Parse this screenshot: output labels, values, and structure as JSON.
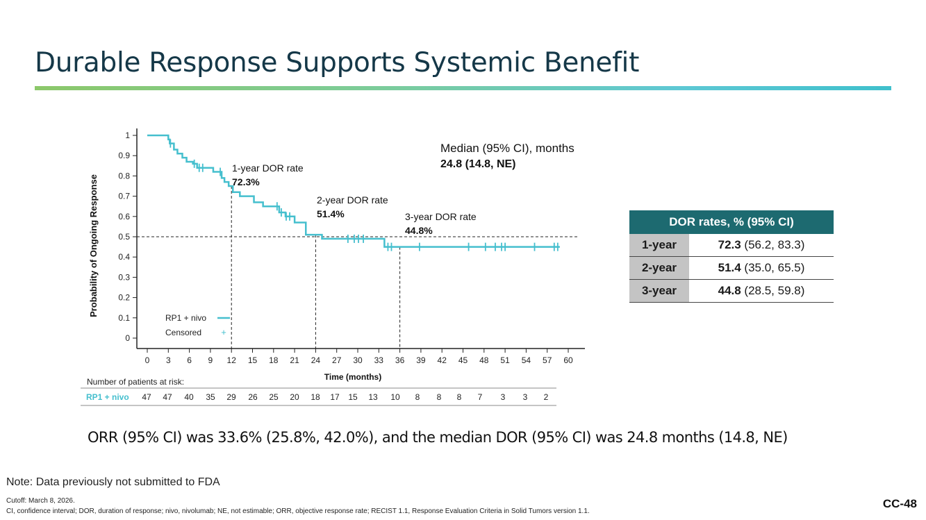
{
  "slide": {
    "title": "Durable Response Supports Systemic Benefit",
    "summary": "ORR (95% CI) was 33.6% (25.8%, 42.0%), and the median DOR (95% CI) was 24.8 months (14.8, NE)",
    "note": "Note: Data previously not submitted to FDA",
    "footnote_cutoff": "Cutoff: March 8, 2026.",
    "footnote_abbrev": "CI, confidence interval; DOR, duration of response; nivo, nivolumab; NE, not estimable; ORR, objective response rate; RECIST 1.1, Response Evaluation Criteria in Solid Tumors version 1.1.",
    "slide_number": "CC-48"
  },
  "colors": {
    "curve": "#45bfce",
    "table_header": "#1d6a70",
    "table_row_label": "#c4c4c4",
    "title_text": "#153848"
  },
  "chart_data": {
    "type": "line",
    "xlabel": "Time (months)",
    "ylabel": "Probability of Ongoing Response",
    "xlim": [
      0,
      60
    ],
    "ylim": [
      0,
      1
    ],
    "x_ticks": [
      0,
      3,
      6,
      9,
      12,
      15,
      18,
      21,
      24,
      27,
      30,
      33,
      36,
      39,
      42,
      45,
      48,
      51,
      54,
      57,
      60
    ],
    "y_ticks": [
      "0",
      "0.1",
      "0.2",
      "0.3",
      "0.4",
      "0.5",
      "0.6",
      "0.7",
      "0.8",
      "0.9",
      "1"
    ],
    "legend": [
      {
        "label": "RP1 + nivo",
        "symbol": "line"
      },
      {
        "label": "Censored",
        "symbol": "+"
      }
    ],
    "series": [
      {
        "name": "RP1 + nivo",
        "step_x": [
          0,
          3,
          3.2,
          3.8,
          4.3,
          5,
          5.6,
          6.5,
          7.1,
          9.4,
          10.6,
          11,
          11.6,
          12.2,
          13.2,
          15.2,
          16.5,
          18.8,
          19.7,
          21,
          22.6,
          24.9,
          33.8,
          58.8
        ],
        "step_y": [
          1,
          0.98,
          0.96,
          0.93,
          0.91,
          0.89,
          0.87,
          0.86,
          0.84,
          0.82,
          0.79,
          0.77,
          0.75,
          0.72,
          0.7,
          0.67,
          0.65,
          0.62,
          0.6,
          0.57,
          0.51,
          0.49,
          0.45,
          0.45
        ],
        "censored_x": [
          3.3,
          6.7,
          7.4,
          7.9,
          10.4,
          18.5,
          19.1,
          19.8,
          20.3,
          28.6,
          29.5,
          30.1,
          30.8,
          34.3,
          34.8,
          38.8,
          45.8,
          48.2,
          49.6,
          50.5,
          51,
          55.2,
          58,
          58.5
        ]
      }
    ],
    "reference_lines": {
      "median_y": 0.5,
      "drop_lines_x": [
        12,
        24,
        36
      ]
    },
    "annotations": [
      {
        "label": "1-year DOR rate",
        "value": "72.3%"
      },
      {
        "label": "2-year DOR rate",
        "value": "51.4%"
      },
      {
        "label": "3-year DOR rate",
        "value": "44.8%"
      }
    ],
    "median": {
      "label": "Median (95% CI), months",
      "value": "24.8 (14.8, NE)"
    },
    "at_risk": {
      "title": "Number of patients at risk:",
      "row_label": "RP1 + nivo",
      "counts": [
        "47",
        "47",
        "40",
        "35",
        "29",
        "26",
        "25",
        "20",
        "18",
        "17",
        "15",
        "13",
        "10",
        "8",
        "8",
        "8",
        "7",
        "3",
        "3",
        "2"
      ]
    }
  },
  "dor_table": {
    "header": "DOR rates, % (95% CI)",
    "rows": [
      {
        "year": "1-year",
        "rate": "72.3",
        "ci": " (56.2, 83.3)"
      },
      {
        "year": "2-year",
        "rate": "51.4",
        "ci": " (35.0, 65.5)"
      },
      {
        "year": "3-year",
        "rate": "44.8",
        "ci": " (28.5, 59.8)"
      }
    ]
  }
}
